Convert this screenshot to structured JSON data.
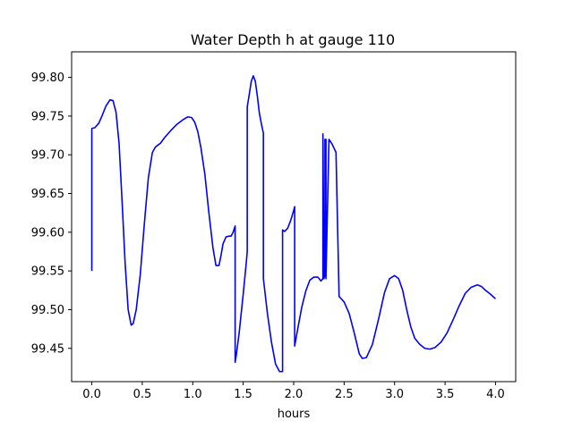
{
  "chart_data": {
    "type": "line",
    "title": "Water Depth h at gauge 110",
    "xlabel": "hours",
    "ylabel": "",
    "xlim": [
      -0.2,
      4.2
    ],
    "ylim": [
      99.407,
      99.833
    ],
    "grid": false,
    "legend": "none",
    "xticks": [
      0.0,
      0.5,
      1.0,
      1.5,
      2.0,
      2.5,
      3.0,
      3.5,
      4.0
    ],
    "xtick_labels": [
      "0.0",
      "0.5",
      "1.0",
      "1.5",
      "2.0",
      "2.5",
      "3.0",
      "3.5",
      "4.0"
    ],
    "yticks": [
      99.45,
      99.5,
      99.55,
      99.6,
      99.65,
      99.7,
      99.75,
      99.8
    ],
    "ytick_labels": [
      "99.45",
      "99.50",
      "99.55",
      "99.60",
      "99.65",
      "99.70",
      "99.75",
      "99.80"
    ],
    "series": [
      {
        "color": "#0000ff",
        "x": [
          0.0,
          0.0,
          0.03,
          0.07,
          0.1,
          0.14,
          0.18,
          0.21,
          0.24,
          0.27,
          0.3,
          0.33,
          0.36,
          0.39,
          0.41,
          0.44,
          0.48,
          0.52,
          0.56,
          0.6,
          0.63,
          0.66,
          0.68,
          0.72,
          0.78,
          0.84,
          0.9,
          0.95,
          0.99,
          1.02,
          1.05,
          1.08,
          1.12,
          1.16,
          1.2,
          1.23,
          1.26,
          1.28,
          1.3,
          1.33,
          1.36,
          1.38,
          1.4,
          1.42,
          1.42,
          1.43,
          1.46,
          1.5,
          1.53,
          1.54,
          1.54,
          1.56,
          1.58,
          1.6,
          1.62,
          1.64,
          1.66,
          1.68,
          1.7,
          1.7,
          1.74,
          1.78,
          1.82,
          1.86,
          1.89,
          1.89,
          1.91,
          1.94,
          1.97,
          2.0,
          2.01,
          2.01,
          2.04,
          2.08,
          2.12,
          2.16,
          2.2,
          2.24,
          2.27,
          2.29,
          2.29,
          2.3,
          2.31,
          2.31,
          2.32,
          2.32,
          2.35,
          2.38,
          2.42,
          2.42,
          2.45,
          2.5,
          2.55,
          2.6,
          2.65,
          2.68,
          2.72,
          2.78,
          2.84,
          2.9,
          2.95,
          3.0,
          3.04,
          3.08,
          3.12,
          3.16,
          3.2,
          3.25,
          3.3,
          3.35,
          3.4,
          3.46,
          3.52,
          3.58,
          3.64,
          3.7,
          3.76,
          3.82,
          3.86,
          3.9,
          3.95,
          4.0
        ],
        "y": [
          99.55,
          99.734,
          99.735,
          99.741,
          99.75,
          99.763,
          99.771,
          99.77,
          99.755,
          99.715,
          99.64,
          99.56,
          99.5,
          99.48,
          99.482,
          99.5,
          99.545,
          99.61,
          99.67,
          99.703,
          99.71,
          99.713,
          99.715,
          99.722,
          99.731,
          99.739,
          99.745,
          99.749,
          99.748,
          99.742,
          99.73,
          99.71,
          99.675,
          99.625,
          99.58,
          99.557,
          99.557,
          99.57,
          99.585,
          99.594,
          99.595,
          99.595,
          99.6,
          99.608,
          99.432,
          99.44,
          99.47,
          99.52,
          99.56,
          99.575,
          99.762,
          99.778,
          99.795,
          99.802,
          99.795,
          99.776,
          99.754,
          99.74,
          99.728,
          99.54,
          99.495,
          99.458,
          99.43,
          99.42,
          99.42,
          99.603,
          99.601,
          99.605,
          99.615,
          99.628,
          99.633,
          99.453,
          99.475,
          99.503,
          99.524,
          99.538,
          99.542,
          99.542,
          99.537,
          99.54,
          99.727,
          99.54,
          99.545,
          99.72,
          99.72,
          99.54,
          99.72,
          99.714,
          99.703,
          99.7,
          99.517,
          99.51,
          99.495,
          99.47,
          99.443,
          99.437,
          99.438,
          99.455,
          99.487,
          99.522,
          99.54,
          99.544,
          99.54,
          99.525,
          99.5,
          99.478,
          99.463,
          99.455,
          99.45,
          99.449,
          99.451,
          99.458,
          99.47,
          99.487,
          99.505,
          99.521,
          99.529,
          99.532,
          99.53,
          99.525,
          99.52,
          99.514
        ]
      }
    ]
  }
}
